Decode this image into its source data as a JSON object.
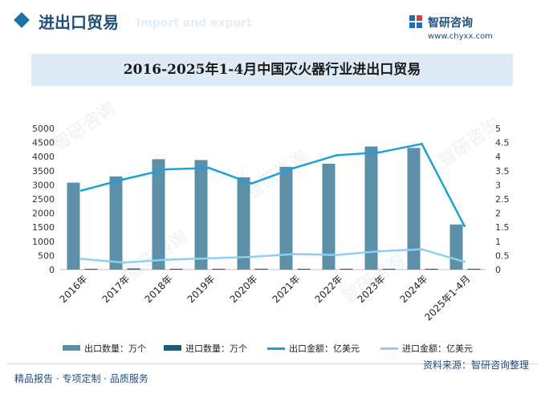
{
  "header": {
    "section_title": "进出口贸易",
    "section_subtitle": "Import and export",
    "brand_name": "智研咨询",
    "brand_url": "www.chyxx.com"
  },
  "chart_data": {
    "type": "bar",
    "title": "2016-2025年1-4月中国灭火器行业进出口贸易",
    "categories": [
      "2016年",
      "2017年",
      "2018年",
      "2019年",
      "2020年",
      "2021年",
      "2022年",
      "2023年",
      "2024年",
      "2025年1-4月"
    ],
    "left_axis": {
      "ylim": [
        0,
        5000
      ],
      "ticks": [
        "0",
        "500",
        "1000",
        "1500",
        "2000",
        "2500",
        "3000",
        "3500",
        "4000",
        "4500",
        "5000"
      ]
    },
    "right_axis": {
      "ylim": [
        0,
        5
      ],
      "ticks": [
        "0",
        "0.5",
        "1",
        "1.5",
        "2",
        "2.5",
        "3",
        "3.5",
        "4",
        "4.5",
        "5"
      ]
    },
    "series": [
      {
        "name": "出口数量：万个",
        "kind": "bar",
        "axis": "left",
        "color": "#5e8fa8",
        "values": [
          3080,
          3300,
          3910,
          3880,
          3270,
          3640,
          3750,
          4360,
          4310,
          1600
        ]
      },
      {
        "name": "进口数量：万个",
        "kind": "bar",
        "axis": "left",
        "color": "#1e5a78",
        "values": [
          30,
          40,
          30,
          30,
          30,
          30,
          30,
          30,
          30,
          30
        ]
      },
      {
        "name": "出口金额：亿美元",
        "kind": "line",
        "axis": "right",
        "color": "#1fa0d8",
        "values": [
          2.8,
          3.2,
          3.55,
          3.6,
          3.05,
          3.6,
          4.05,
          4.15,
          4.45,
          1.55
        ]
      },
      {
        "name": "进口金额：亿美元",
        "kind": "line",
        "axis": "right",
        "color": "#8fd0f0",
        "values": [
          0.38,
          0.25,
          0.35,
          0.4,
          0.45,
          0.55,
          0.52,
          0.65,
          0.72,
          0.28
        ]
      }
    ]
  },
  "footer": {
    "left": "精品报告 · 专项定制 · 品质服务",
    "right": "资料来源：智研咨询整理"
  }
}
